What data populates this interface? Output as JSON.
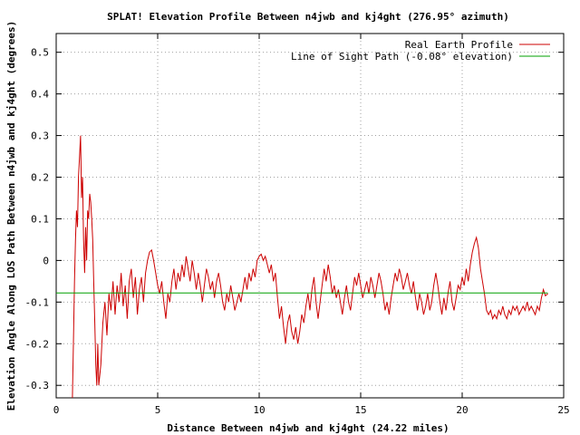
{
  "chart_data": {
    "type": "line",
    "title": "SPLAT! Elevation Profile Between n4jwb and kj4ght (276.95° azimuth)",
    "xlabel": "Distance Between n4jwb and kj4ght (24.22 miles)",
    "ylabel": "Elevation Angle Along LOS Path Between n4jwb and kj4ght (degrees)",
    "xlim": [
      0,
      25
    ],
    "ylim": [
      -0.33,
      0.545
    ],
    "x_ticks": [
      0,
      5,
      10,
      15,
      20,
      25
    ],
    "y_ticks": [
      -0.3,
      -0.2,
      -0.1,
      0,
      0.1,
      0.2,
      0.3,
      0.4,
      0.5
    ],
    "x_tick_labels": [
      "0",
      "5",
      "10",
      "15",
      "20",
      "25"
    ],
    "y_tick_labels": [
      "-0.3",
      "-0.2",
      "-0.1",
      "0",
      "0.1",
      "0.2",
      "0.3",
      "0.4",
      "0.5"
    ],
    "grid": true,
    "legend_position": "top-right",
    "series": [
      {
        "name": "Real Earth Profile",
        "color": "#cc0000",
        "points": [
          [
            0.8,
            -0.33
          ],
          [
            0.85,
            -0.2
          ],
          [
            0.9,
            -0.05
          ],
          [
            0.95,
            0.05
          ],
          [
            1.0,
            0.12
          ],
          [
            1.05,
            0.08
          ],
          [
            1.1,
            0.2
          ],
          [
            1.15,
            0.25
          ],
          [
            1.2,
            0.3
          ],
          [
            1.25,
            0.15
          ],
          [
            1.3,
            0.2
          ],
          [
            1.35,
            0.05
          ],
          [
            1.4,
            -0.03
          ],
          [
            1.45,
            0.08
          ],
          [
            1.5,
            0.0
          ],
          [
            1.55,
            0.12
          ],
          [
            1.6,
            0.1
          ],
          [
            1.65,
            0.16
          ],
          [
            1.7,
            0.14
          ],
          [
            1.75,
            0.1
          ],
          [
            1.8,
            0.05
          ],
          [
            1.85,
            -0.05
          ],
          [
            1.9,
            -0.15
          ],
          [
            1.95,
            -0.25
          ],
          [
            2.0,
            -0.3
          ],
          [
            2.05,
            -0.2
          ],
          [
            2.1,
            -0.3
          ],
          [
            2.2,
            -0.25
          ],
          [
            2.3,
            -0.15
          ],
          [
            2.4,
            -0.1
          ],
          [
            2.5,
            -0.18
          ],
          [
            2.6,
            -0.08
          ],
          [
            2.7,
            -0.12
          ],
          [
            2.8,
            -0.05
          ],
          [
            2.9,
            -0.13
          ],
          [
            3.0,
            -0.06
          ],
          [
            3.1,
            -0.1
          ],
          [
            3.2,
            -0.03
          ],
          [
            3.3,
            -0.11
          ],
          [
            3.4,
            -0.06
          ],
          [
            3.5,
            -0.14
          ],
          [
            3.6,
            -0.05
          ],
          [
            3.7,
            -0.02
          ],
          [
            3.8,
            -0.09
          ],
          [
            3.9,
            -0.04
          ],
          [
            4.0,
            -0.13
          ],
          [
            4.1,
            -0.07
          ],
          [
            4.2,
            -0.04
          ],
          [
            4.3,
            -0.1
          ],
          [
            4.4,
            -0.03
          ],
          [
            4.5,
            0.0
          ],
          [
            4.6,
            0.02
          ],
          [
            4.7,
            0.025
          ],
          [
            4.8,
            0.0
          ],
          [
            4.9,
            -0.03
          ],
          [
            5.0,
            -0.06
          ],
          [
            5.1,
            -0.08
          ],
          [
            5.2,
            -0.05
          ],
          [
            5.3,
            -0.1
          ],
          [
            5.4,
            -0.14
          ],
          [
            5.5,
            -0.08
          ],
          [
            5.6,
            -0.1
          ],
          [
            5.7,
            -0.05
          ],
          [
            5.8,
            -0.02
          ],
          [
            5.9,
            -0.07
          ],
          [
            6.0,
            -0.03
          ],
          [
            6.1,
            -0.05
          ],
          [
            6.2,
            -0.01
          ],
          [
            6.3,
            -0.04
          ],
          [
            6.4,
            0.01
          ],
          [
            6.5,
            -0.02
          ],
          [
            6.6,
            -0.05
          ],
          [
            6.7,
            0.0
          ],
          [
            6.8,
            -0.03
          ],
          [
            6.9,
            -0.07
          ],
          [
            7.0,
            -0.03
          ],
          [
            7.1,
            -0.06
          ],
          [
            7.2,
            -0.1
          ],
          [
            7.3,
            -0.06
          ],
          [
            7.4,
            -0.02
          ],
          [
            7.5,
            -0.04
          ],
          [
            7.6,
            -0.07
          ],
          [
            7.7,
            -0.05
          ],
          [
            7.8,
            -0.09
          ],
          [
            7.9,
            -0.05
          ],
          [
            8.0,
            -0.03
          ],
          [
            8.1,
            -0.06
          ],
          [
            8.2,
            -0.1
          ],
          [
            8.3,
            -0.12
          ],
          [
            8.4,
            -0.08
          ],
          [
            8.5,
            -0.1
          ],
          [
            8.6,
            -0.06
          ],
          [
            8.7,
            -0.09
          ],
          [
            8.8,
            -0.12
          ],
          [
            8.9,
            -0.1
          ],
          [
            9.0,
            -0.08
          ],
          [
            9.1,
            -0.1
          ],
          [
            9.2,
            -0.07
          ],
          [
            9.3,
            -0.04
          ],
          [
            9.4,
            -0.07
          ],
          [
            9.5,
            -0.03
          ],
          [
            9.6,
            -0.05
          ],
          [
            9.7,
            -0.02
          ],
          [
            9.8,
            -0.04
          ],
          [
            9.9,
            0.0
          ],
          [
            10.0,
            0.01
          ],
          [
            10.1,
            0.015
          ],
          [
            10.2,
            0.0
          ],
          [
            10.3,
            0.01
          ],
          [
            10.4,
            -0.01
          ],
          [
            10.5,
            -0.03
          ],
          [
            10.6,
            -0.01
          ],
          [
            10.7,
            -0.05
          ],
          [
            10.8,
            -0.03
          ],
          [
            10.9,
            -0.09
          ],
          [
            11.0,
            -0.14
          ],
          [
            11.1,
            -0.11
          ],
          [
            11.2,
            -0.16
          ],
          [
            11.3,
            -0.2
          ],
          [
            11.4,
            -0.15
          ],
          [
            11.5,
            -0.13
          ],
          [
            11.6,
            -0.17
          ],
          [
            11.7,
            -0.19
          ],
          [
            11.8,
            -0.16
          ],
          [
            11.9,
            -0.2
          ],
          [
            12.0,
            -0.17
          ],
          [
            12.1,
            -0.13
          ],
          [
            12.2,
            -0.15
          ],
          [
            12.3,
            -0.11
          ],
          [
            12.4,
            -0.08
          ],
          [
            12.5,
            -0.12
          ],
          [
            12.6,
            -0.07
          ],
          [
            12.7,
            -0.04
          ],
          [
            12.8,
            -0.1
          ],
          [
            12.9,
            -0.14
          ],
          [
            13.0,
            -0.1
          ],
          [
            13.1,
            -0.06
          ],
          [
            13.2,
            -0.02
          ],
          [
            13.3,
            -0.05
          ],
          [
            13.4,
            -0.01
          ],
          [
            13.5,
            -0.04
          ],
          [
            13.6,
            -0.08
          ],
          [
            13.7,
            -0.06
          ],
          [
            13.8,
            -0.09
          ],
          [
            13.9,
            -0.07
          ],
          [
            14.0,
            -0.1
          ],
          [
            14.1,
            -0.13
          ],
          [
            14.2,
            -0.09
          ],
          [
            14.3,
            -0.06
          ],
          [
            14.4,
            -0.1
          ],
          [
            14.5,
            -0.12
          ],
          [
            14.6,
            -0.08
          ],
          [
            14.7,
            -0.04
          ],
          [
            14.8,
            -0.06
          ],
          [
            14.9,
            -0.03
          ],
          [
            15.0,
            -0.06
          ],
          [
            15.1,
            -0.09
          ],
          [
            15.2,
            -0.07
          ],
          [
            15.3,
            -0.05
          ],
          [
            15.4,
            -0.08
          ],
          [
            15.5,
            -0.04
          ],
          [
            15.6,
            -0.06
          ],
          [
            15.7,
            -0.09
          ],
          [
            15.8,
            -0.06
          ],
          [
            15.9,
            -0.03
          ],
          [
            16.0,
            -0.05
          ],
          [
            16.1,
            -0.08
          ],
          [
            16.2,
            -0.12
          ],
          [
            16.3,
            -0.1
          ],
          [
            16.4,
            -0.13
          ],
          [
            16.5,
            -0.09
          ],
          [
            16.6,
            -0.06
          ],
          [
            16.7,
            -0.03
          ],
          [
            16.8,
            -0.05
          ],
          [
            16.9,
            -0.02
          ],
          [
            17.0,
            -0.04
          ],
          [
            17.1,
            -0.07
          ],
          [
            17.2,
            -0.05
          ],
          [
            17.3,
            -0.03
          ],
          [
            17.4,
            -0.06
          ],
          [
            17.5,
            -0.08
          ],
          [
            17.6,
            -0.05
          ],
          [
            17.7,
            -0.09
          ],
          [
            17.8,
            -0.12
          ],
          [
            17.9,
            -0.08
          ],
          [
            18.0,
            -0.1
          ],
          [
            18.1,
            -0.13
          ],
          [
            18.2,
            -0.11
          ],
          [
            18.3,
            -0.08
          ],
          [
            18.4,
            -0.12
          ],
          [
            18.5,
            -0.1
          ],
          [
            18.6,
            -0.06
          ],
          [
            18.7,
            -0.03
          ],
          [
            18.8,
            -0.06
          ],
          [
            18.9,
            -0.1
          ],
          [
            19.0,
            -0.13
          ],
          [
            19.1,
            -0.09
          ],
          [
            19.2,
            -0.12
          ],
          [
            19.3,
            -0.08
          ],
          [
            19.4,
            -0.05
          ],
          [
            19.5,
            -0.1
          ],
          [
            19.6,
            -0.12
          ],
          [
            19.7,
            -0.09
          ],
          [
            19.8,
            -0.06
          ],
          [
            19.9,
            -0.07
          ],
          [
            20.0,
            -0.04
          ],
          [
            20.1,
            -0.06
          ],
          [
            20.2,
            -0.02
          ],
          [
            20.3,
            -0.05
          ],
          [
            20.4,
            -0.01
          ],
          [
            20.5,
            0.02
          ],
          [
            20.6,
            0.04
          ],
          [
            20.7,
            0.055
          ],
          [
            20.8,
            0.03
          ],
          [
            20.9,
            -0.02
          ],
          [
            21.0,
            -0.05
          ],
          [
            21.1,
            -0.08
          ],
          [
            21.2,
            -0.12
          ],
          [
            21.3,
            -0.13
          ],
          [
            21.4,
            -0.12
          ],
          [
            21.5,
            -0.14
          ],
          [
            21.6,
            -0.13
          ],
          [
            21.7,
            -0.14
          ],
          [
            21.8,
            -0.12
          ],
          [
            21.9,
            -0.13
          ],
          [
            22.0,
            -0.11
          ],
          [
            22.1,
            -0.13
          ],
          [
            22.2,
            -0.14
          ],
          [
            22.3,
            -0.12
          ],
          [
            22.4,
            -0.13
          ],
          [
            22.5,
            -0.11
          ],
          [
            22.6,
            -0.12
          ],
          [
            22.7,
            -0.11
          ],
          [
            22.8,
            -0.13
          ],
          [
            22.9,
            -0.12
          ],
          [
            23.0,
            -0.11
          ],
          [
            23.1,
            -0.12
          ],
          [
            23.2,
            -0.1
          ],
          [
            23.3,
            -0.12
          ],
          [
            23.4,
            -0.11
          ],
          [
            23.5,
            -0.12
          ],
          [
            23.6,
            -0.13
          ],
          [
            23.7,
            -0.11
          ],
          [
            23.8,
            -0.12
          ],
          [
            23.9,
            -0.09
          ],
          [
            24.0,
            -0.07
          ],
          [
            24.1,
            -0.085
          ],
          [
            24.22,
            -0.08
          ]
        ]
      },
      {
        "name": "Line of Sight Path (-0.08° elevation)",
        "color": "#00a000",
        "points": [
          [
            0,
            -0.078
          ],
          [
            24.22,
            -0.078
          ]
        ]
      }
    ]
  }
}
